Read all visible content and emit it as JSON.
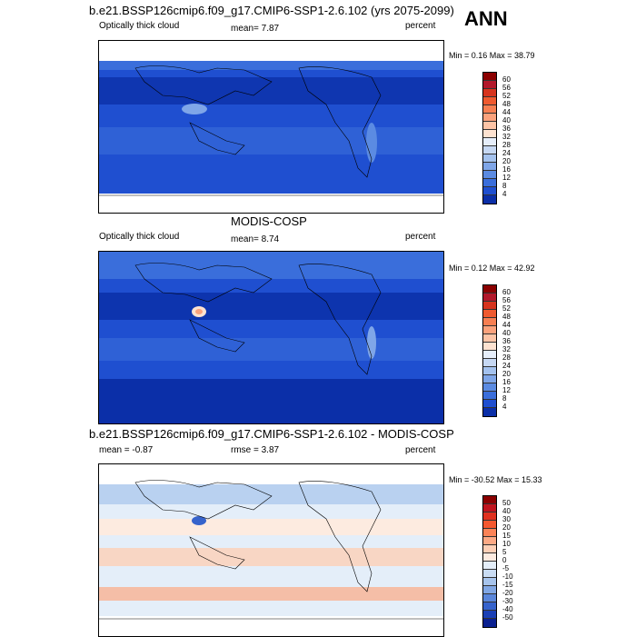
{
  "header": {
    "season": "ANN"
  },
  "panels": [
    {
      "title": "b.e21.BSSP126cmip6.f09_g17.CMIP6-SSP1-2.6.102 (yrs 2075-2099)",
      "left_label": "Optically thick cloud",
      "center_label": "mean=  7.87",
      "right_label": "percent",
      "minmax": "Min =  0.16 Max =  38.79",
      "colorbar": {
        "ticks": [
          "60",
          "56",
          "52",
          "48",
          "44",
          "40",
          "36",
          "32",
          "28",
          "24",
          "20",
          "16",
          "12",
          "8",
          "4"
        ],
        "colors": [
          "#8b0000",
          "#b2182b",
          "#d6341e",
          "#ef5a2f",
          "#f77f52",
          "#fba27c",
          "#fdc4a6",
          "#fde2d0",
          "#e6eefa",
          "#c6d8f3",
          "#a4c2ee",
          "#7fa6e8",
          "#5b8be2",
          "#3a6edb",
          "#1f4fd0",
          "#0b2fa8"
        ]
      }
    },
    {
      "title": "MODIS-COSP",
      "left_label": "Optically thick cloud",
      "center_label": "mean=  8.74",
      "right_label": "percent",
      "minmax": "Min =  0.12 Max =  42.92",
      "colorbar": {
        "ticks": [
          "60",
          "56",
          "52",
          "48",
          "44",
          "40",
          "36",
          "32",
          "28",
          "24",
          "20",
          "16",
          "12",
          "8",
          "4"
        ],
        "colors": [
          "#8b0000",
          "#b2182b",
          "#d6341e",
          "#ef5a2f",
          "#f77f52",
          "#fba27c",
          "#fdc4a6",
          "#fde2d0",
          "#e6eefa",
          "#c6d8f3",
          "#a4c2ee",
          "#7fa6e8",
          "#5b8be2",
          "#3a6edb",
          "#1f4fd0",
          "#0b2fa8"
        ]
      }
    },
    {
      "title": "b.e21.BSSP126cmip6.f09_g17.CMIP6-SSP1-2.6.102 - MODIS-COSP",
      "left_label": "mean = -0.87",
      "center_label": "rmse =  3.87",
      "right_label": "percent",
      "minmax": "Min = -30.52 Max =  15.33",
      "colorbar": {
        "ticks": [
          "50",
          "40",
          "30",
          "20",
          "15",
          "10",
          "5",
          "0",
          "-5",
          "-10",
          "-15",
          "-20",
          "-30",
          "-40",
          "-50"
        ],
        "colors": [
          "#8b0000",
          "#c0141e",
          "#e0311f",
          "#f4582f",
          "#fb8357",
          "#fca985",
          "#fdcfb6",
          "#fdebe0",
          "#e4eef9",
          "#c9dcf3",
          "#a7c4ec",
          "#81a7e4",
          "#5a86da",
          "#3663cc",
          "#1a3fb5",
          "#0a2090"
        ]
      }
    }
  ]
}
